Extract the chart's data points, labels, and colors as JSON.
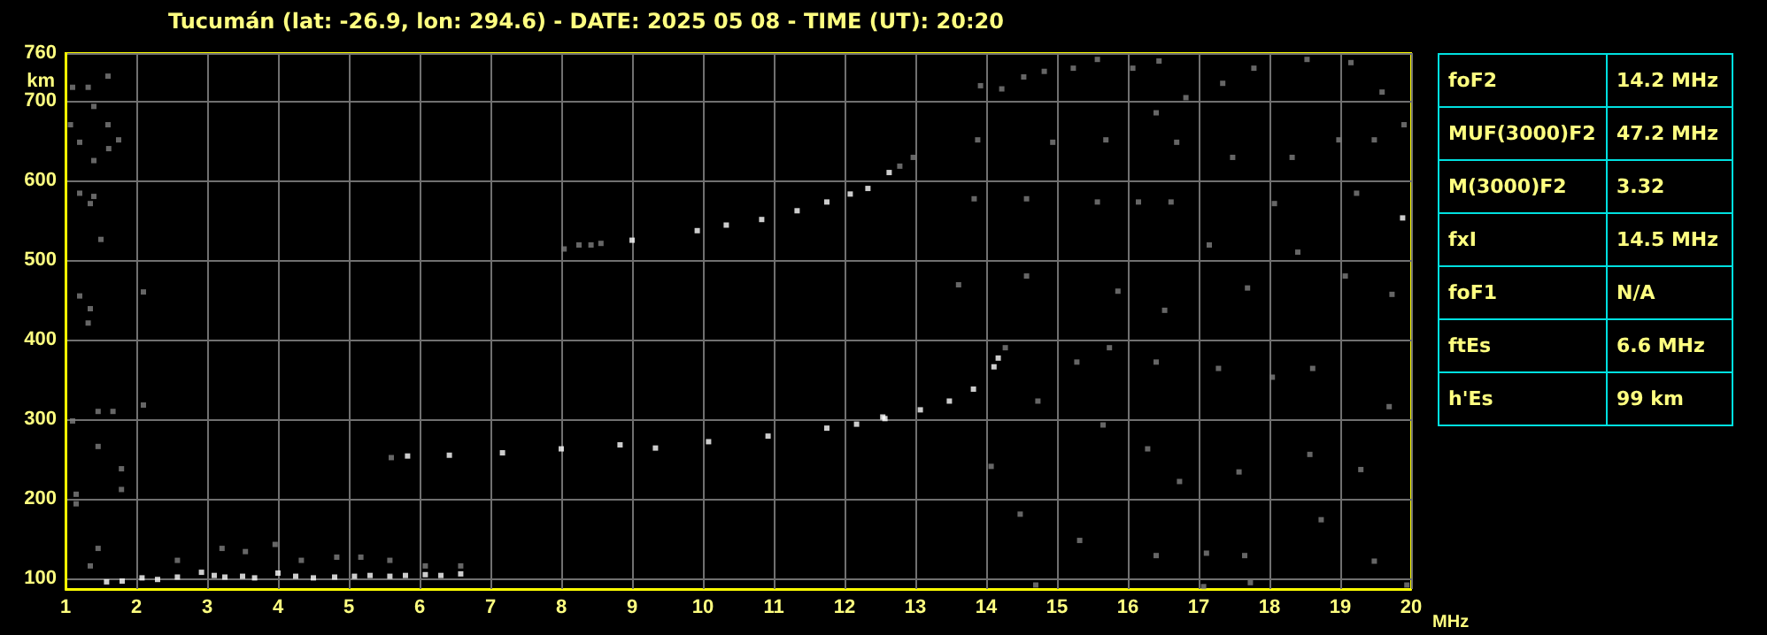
{
  "chart_data": [
    {
      "type": "scatter",
      "title": "Tucumán (lat: -26.9, lon: 294.6) - DATE: 2025 05 08 - TIME (UT): 20:20",
      "xlabel": "MHz",
      "ylabel": "km",
      "xlim": [
        1,
        20
      ],
      "ylim": [
        87,
        760
      ],
      "xticks": [
        1,
        2,
        3,
        4,
        5,
        6,
        7,
        8,
        9,
        10,
        11,
        12,
        13,
        14,
        15,
        16,
        17,
        18,
        19,
        20
      ],
      "yticks": [
        100,
        200,
        300,
        400,
        500,
        600,
        700,
        760
      ],
      "grid": true,
      "marker": "square",
      "series": [
        {
          "color": "#ffffff",
          "x": [
            1.58,
            1.8,
            2.08,
            2.3,
            2.58,
            2.92,
            3.1,
            3.25,
            3.5,
            3.67,
            4.0,
            4.25,
            4.5,
            4.8,
            5.08,
            5.3,
            5.58,
            5.8,
            6.08,
            6.3,
            6.58,
            5.83,
            6.42,
            7.17,
            8.0,
            8.83,
            9.33,
            10.08,
            10.92,
            11.75,
            12.17,
            12.54,
            12.57,
            13.07,
            13.48,
            13.82,
            14.11,
            14.17,
            9.0,
            9.92,
            10.33,
            10.83,
            11.33,
            11.75,
            12.08,
            12.33,
            12.63,
            19.88
          ],
          "values": [
            96,
            97,
            101,
            99,
            102,
            108,
            104,
            102,
            103,
            101,
            107,
            103,
            101,
            102,
            103,
            104,
            103,
            104,
            105,
            104,
            106,
            254,
            255,
            258,
            263,
            268,
            264,
            272,
            279,
            289,
            294,
            303,
            301,
            312,
            323,
            338,
            366,
            377,
            525,
            537,
            544,
            551,
            562,
            573,
            583,
            590,
            610,
            553
          ]
        },
        {
          "color": "#808080",
          "x": [
            13.92,
            14.22,
            14.53,
            14.82,
            15.23,
            15.57,
            16.07,
            16.44,
            16.82,
            17.34,
            17.78,
            18.53,
            19.15,
            19.59,
            13.88,
            14.94,
            15.69,
            16.4,
            16.69,
            17.48,
            18.32,
            18.98,
            19.48,
            19.9,
            13.83,
            14.57,
            15.57,
            16.15,
            16.61,
            17.15,
            18.07,
            19.23,
            13.61,
            14.57,
            15.86,
            16.52,
            17.69,
            18.4,
            19.07,
            19.73,
            14.27,
            15.28,
            15.74,
            16.4,
            17.28,
            18.04,
            18.61,
            19.69,
            14.73,
            15.65,
            16.28,
            16.73,
            17.57,
            18.57,
            19.29,
            14.07,
            14.48,
            15.32,
            16.4,
            17.11,
            17.65,
            18.73,
            19.48,
            14.7,
            17.07,
            17.73,
            19.94,
            1.1,
            1.32,
            1.6,
            1.4,
            1.07,
            1.6,
            1.2,
            1.75,
            1.61,
            1.4,
            1.2,
            1.4,
            1.35,
            1.5,
            1.2,
            2.1,
            1.35,
            8.04,
            8.25,
            8.42,
            8.56,
            12.78,
            12.97,
            1.32,
            1.1,
            1.46,
            1.67,
            2.1,
            1.46,
            1.79,
            1.79,
            1.15,
            1.15,
            1.46,
            1.35,
            5.6,
            2.58,
            3.21,
            3.54,
            3.96,
            4.33,
            4.83,
            5.17,
            5.58,
            6.08,
            6.58
          ],
          "values": [
            719,
            715,
            730,
            737,
            741,
            752,
            741,
            750,
            704,
            722,
            741,
            752,
            748,
            711,
            651,
            648,
            651,
            685,
            648,
            629,
            629,
            651,
            651,
            670,
            577,
            577,
            573,
            573,
            573,
            519,
            571,
            584,
            469,
            480,
            461,
            437,
            465,
            510,
            480,
            457,
            390,
            372,
            390,
            372,
            364,
            353,
            364,
            316,
            323,
            293,
            263,
            222,
            234,
            256,
            237,
            241,
            181,
            148,
            129,
            132,
            129,
            174,
            122,
            92,
            90,
            95,
            92,
            717,
            717,
            731,
            693,
            670,
            670,
            648,
            651,
            640,
            625,
            584,
            580,
            571,
            526,
            455,
            460,
            439,
            514,
            519,
            519,
            521,
            618,
            629,
            421,
            298,
            310,
            310,
            318,
            266,
            238,
            212,
            206,
            194,
            138,
            116,
            252,
            123,
            138,
            134,
            143,
            123,
            127,
            127,
            123,
            116,
            116
          ]
        }
      ]
    },
    {
      "type": "other",
      "annotations": [
        "foF2",
        "14.2 MHz",
        "MUF(3000)F2",
        "47.2 MHz",
        "M(3000)F2",
        "3.32",
        "fxI",
        "14.5 MHz",
        "foF1",
        "N/A",
        "ftEs",
        "6.6 MHz",
        "h'Es",
        "99 km"
      ]
    }
  ]
}
